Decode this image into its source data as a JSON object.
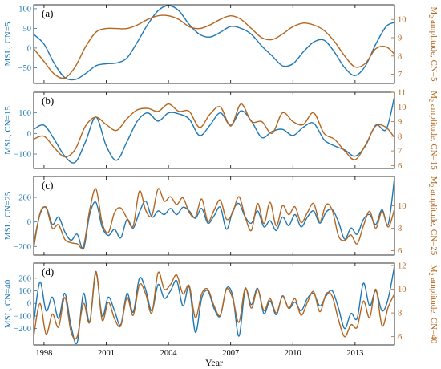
{
  "chart_data": {
    "type": "line",
    "xlabel": "Year",
    "xlim": [
      1997.5,
      2014.9
    ],
    "xticks": [
      1998,
      2001,
      2004,
      2007,
      2010,
      2013
    ],
    "colors": {
      "msl": "#1f77b4",
      "m2": "#b5651d",
      "axis": "#000000"
    },
    "panels": [
      {
        "tag": "(a)",
        "ylabel_left": "MSL, CN=5",
        "ylabel_right": "M2 amplitude, CN=5",
        "ylim_left": [
          -90,
          110
        ],
        "yticks_left": [
          -50,
          0,
          50,
          100
        ],
        "ylim_right": [
          6.5,
          10.8
        ],
        "yticks_right": [
          7,
          8,
          9,
          10
        ],
        "series": [
          {
            "axis": "left",
            "color": "#1f77b4",
            "x": [
              1997.5,
              1998.0,
              1998.5,
              1999.0,
              1999.5,
              2000.0,
              2000.5,
              2001.0,
              2001.5,
              2002.0,
              2002.5,
              2003.0,
              2003.5,
              2004.0,
              2004.5,
              2005.0,
              2005.5,
              2006.0,
              2006.5,
              2007.0,
              2007.5,
              2008.0,
              2008.5,
              2009.0,
              2009.5,
              2010.0,
              2010.5,
              2011.0,
              2011.5,
              2012.0,
              2012.5,
              2013.0,
              2013.5,
              2014.0,
              2014.5,
              2014.9
            ],
            "y": [
              35,
              10,
              -40,
              -75,
              -80,
              -65,
              -45,
              -40,
              -38,
              -25,
              15,
              60,
              95,
              108,
              95,
              60,
              35,
              28,
              40,
              55,
              50,
              35,
              5,
              -20,
              -45,
              -40,
              -10,
              15,
              20,
              -10,
              -50,
              -70,
              -45,
              10,
              55,
              65
            ]
          },
          {
            "axis": "right",
            "color": "#b5651d",
            "x": [
              1997.5,
              1998.0,
              1998.5,
              1999.0,
              1999.5,
              2000.0,
              2000.5,
              2001.0,
              2001.5,
              2002.0,
              2002.5,
              2003.0,
              2003.5,
              2004.0,
              2004.5,
              2005.0,
              2005.5,
              2006.0,
              2006.5,
              2007.0,
              2007.5,
              2008.0,
              2008.5,
              2009.0,
              2009.5,
              2010.0,
              2010.5,
              2011.0,
              2011.5,
              2012.0,
              2012.5,
              2013.0,
              2013.5,
              2014.0,
              2014.5,
              2014.9
            ],
            "y": [
              8.4,
              7.7,
              7.0,
              6.8,
              7.4,
              8.5,
              9.3,
              9.5,
              9.5,
              9.5,
              9.7,
              10.0,
              10.2,
              10.2,
              10.0,
              9.6,
              9.5,
              9.7,
              10.0,
              10.2,
              10.0,
              9.5,
              9.0,
              8.9,
              9.2,
              9.6,
              9.8,
              9.7,
              9.4,
              8.8,
              8.0,
              7.4,
              7.6,
              8.4,
              8.5,
              8.1
            ]
          }
        ]
      },
      {
        "tag": "(b)",
        "ylabel_left": "MSL, CN=15",
        "ylabel_right": "M2 amplitude, CN=15",
        "ylim_left": [
          -170,
          200
        ],
        "yticks_left": [
          -100,
          0,
          100
        ],
        "ylim_right": [
          5.8,
          11
        ],
        "yticks_right": [
          6,
          7,
          8,
          9,
          10,
          11
        ],
        "series": [
          {
            "axis": "left",
            "color": "#1f77b4",
            "x": [
              1997.5,
              1998.0,
              1998.5,
              1999.0,
              1999.5,
              2000.0,
              2000.5,
              2001.0,
              2001.5,
              2002.0,
              2002.5,
              2003.0,
              2003.5,
              2004.0,
              2004.5,
              2005.0,
              2005.5,
              2006.0,
              2006.5,
              2007.0,
              2007.5,
              2008.0,
              2008.5,
              2009.0,
              2009.5,
              2010.0,
              2010.5,
              2011.0,
              2011.5,
              2012.0,
              2012.5,
              2013.0,
              2013.5,
              2014.0,
              2014.5,
              2014.9
            ],
            "y": [
              20,
              40,
              -30,
              -110,
              -140,
              -40,
              80,
              -60,
              -130,
              -40,
              60,
              100,
              60,
              100,
              95,
              70,
              -10,
              40,
              100,
              40,
              110,
              60,
              -20,
              10,
              20,
              -10,
              30,
              50,
              -30,
              -60,
              -80,
              -110,
              -60,
              40,
              20,
              180
            ]
          },
          {
            "axis": "right",
            "color": "#b5651d",
            "x": [
              1997.5,
              1998.0,
              1998.5,
              1999.0,
              1999.5,
              2000.0,
              2000.5,
              2001.0,
              2001.5,
              2002.0,
              2002.5,
              2003.0,
              2003.5,
              2004.0,
              2004.5,
              2005.0,
              2005.5,
              2006.0,
              2006.5,
              2007.0,
              2007.5,
              2008.0,
              2008.5,
              2009.0,
              2009.5,
              2010.0,
              2010.5,
              2011.0,
              2011.5,
              2012.0,
              2012.5,
              2013.0,
              2013.5,
              2014.0,
              2014.5,
              2014.9
            ],
            "y": [
              7.8,
              8.0,
              7.2,
              6.6,
              7.1,
              8.7,
              9.3,
              8.8,
              8.4,
              9.2,
              9.8,
              9.9,
              9.7,
              10.2,
              9.7,
              9.7,
              8.6,
              9.5,
              10.0,
              8.7,
              10.2,
              9.0,
              9.0,
              8.2,
              9.6,
              9.0,
              8.8,
              9.6,
              8.2,
              7.8,
              7.0,
              6.4,
              7.4,
              8.7,
              8.6,
              7.9
            ]
          }
        ]
      },
      {
        "tag": "(c)",
        "ylabel_left": "MSL, CN=25",
        "ylabel_right": "M2 amplitude, CN=25",
        "ylim_left": [
          -270,
          370
        ],
        "yticks_left": [
          -200,
          0,
          200
        ],
        "ylim_right": [
          5.6,
          12.6
        ],
        "yticks_right": [
          6,
          8,
          10
        ],
        "series": [
          {
            "axis": "left",
            "color": "#1f77b4",
            "x": [
              1997.5,
              1997.8,
              1998.1,
              1998.4,
              1998.7,
              1999.0,
              1999.3,
              1999.6,
              1999.9,
              2000.2,
              2000.5,
              2000.8,
              2001.1,
              2001.4,
              2001.7,
              2002.0,
              2002.3,
              2002.6,
              2002.9,
              2003.2,
              2003.5,
              2003.8,
              2004.1,
              2004.4,
              2004.7,
              2005.0,
              2005.3,
              2005.6,
              2005.9,
              2006.2,
              2006.5,
              2006.8,
              2007.1,
              2007.4,
              2007.7,
              2008.0,
              2008.3,
              2008.6,
              2008.9,
              2009.2,
              2009.5,
              2009.8,
              2010.1,
              2010.4,
              2010.7,
              2011.0,
              2011.3,
              2011.6,
              2011.9,
              2012.2,
              2012.5,
              2012.8,
              2013.1,
              2013.4,
              2013.7,
              2014.0,
              2014.3,
              2014.6,
              2014.9
            ],
            "y": [
              -180,
              60,
              120,
              -20,
              40,
              -80,
              -150,
              -100,
              -220,
              60,
              160,
              -40,
              -110,
              -60,
              -130,
              20,
              -50,
              80,
              170,
              40,
              90,
              60,
              110,
              60,
              120,
              90,
              30,
              110,
              -10,
              50,
              120,
              -60,
              90,
              150,
              40,
              -10,
              90,
              -40,
              10,
              -70,
              40,
              -30,
              60,
              -40,
              40,
              90,
              -10,
              80,
              100,
              0,
              -140,
              -50,
              -100,
              20,
              60,
              -20,
              100,
              -20,
              360
            ]
          },
          {
            "axis": "right",
            "color": "#b5651d",
            "x": [
              1997.5,
              1997.8,
              1998.1,
              1998.4,
              1998.7,
              1999.0,
              1999.3,
              1999.6,
              1999.9,
              2000.2,
              2000.5,
              2000.8,
              2001.1,
              2001.4,
              2001.7,
              2002.0,
              2002.3,
              2002.6,
              2002.9,
              2003.2,
              2003.5,
              2003.8,
              2004.1,
              2004.4,
              2004.7,
              2005.0,
              2005.3,
              2005.6,
              2005.9,
              2006.2,
              2006.5,
              2006.8,
              2007.1,
              2007.4,
              2007.7,
              2008.0,
              2008.3,
              2008.6,
              2008.9,
              2009.2,
              2009.5,
              2009.8,
              2010.1,
              2010.4,
              2010.7,
              2011.0,
              2011.3,
              2011.6,
              2011.9,
              2012.2,
              2012.5,
              2012.8,
              2013.1,
              2013.4,
              2013.7,
              2014.0,
              2014.3,
              2014.6,
              2014.9
            ],
            "y": [
              6.2,
              9.3,
              9.8,
              8.0,
              8.3,
              7.0,
              6.7,
              6.6,
              6.4,
              9.6,
              11.5,
              8.5,
              7.6,
              9.4,
              9.8,
              8.9,
              8.2,
              11.3,
              9.6,
              9.1,
              11.5,
              10.4,
              10.8,
              10.1,
              10.7,
              9.4,
              9.0,
              10.6,
              8.6,
              9.6,
              10.5,
              8.8,
              9.4,
              10.8,
              9.0,
              7.8,
              10.2,
              8.4,
              10.3,
              8.2,
              10.0,
              9.2,
              9.9,
              8.5,
              9.4,
              10.2,
              8.6,
              10.1,
              9.6,
              7.3,
              6.9,
              7.4,
              6.6,
              8.2,
              9.5,
              8.0,
              9.5,
              8.1,
              9.7
            ]
          }
        ]
      },
      {
        "tag": "(d)",
        "ylabel_left": "MSL, CN=40",
        "ylabel_right": "M2 amplitude, CN=40",
        "ylim_left": [
          -330,
          320
        ],
        "yticks_left": [
          -200,
          -100,
          0,
          100,
          200
        ],
        "ylim_right": [
          5.3,
          12.2
        ],
        "yticks_right": [
          6,
          8,
          10,
          12
        ],
        "series": [
          {
            "axis": "left",
            "color": "#1f77b4",
            "x": [
              1997.5,
              1997.8,
              1998.1,
              1998.4,
              1998.7,
              1999.0,
              1999.3,
              1999.6,
              1999.9,
              2000.2,
              2000.5,
              2000.8,
              2001.1,
              2001.4,
              2001.7,
              2002.0,
              2002.3,
              2002.6,
              2002.9,
              2003.2,
              2003.5,
              2003.8,
              2004.1,
              2004.4,
              2004.7,
              2005.0,
              2005.3,
              2005.6,
              2005.9,
              2006.2,
              2006.5,
              2006.8,
              2007.1,
              2007.4,
              2007.7,
              2008.0,
              2008.3,
              2008.6,
              2008.9,
              2009.2,
              2009.5,
              2009.8,
              2010.1,
              2010.4,
              2010.7,
              2011.0,
              2011.3,
              2011.6,
              2011.9,
              2012.2,
              2012.5,
              2012.8,
              2013.1,
              2013.4,
              2013.7,
              2014.0,
              2014.3,
              2014.6,
              2014.9
            ],
            "y": [
              -160,
              170,
              -60,
              50,
              -120,
              80,
              -180,
              -310,
              80,
              -150,
              240,
              -100,
              50,
              -60,
              -170,
              80,
              -70,
              200,
              110,
              -60,
              150,
              40,
              100,
              180,
              -20,
              130,
              -230,
              40,
              100,
              -40,
              -100,
              120,
              60,
              -260,
              110,
              -10,
              120,
              -80,
              20,
              -90,
              60,
              -40,
              10,
              -60,
              40,
              80,
              -20,
              60,
              100,
              -40,
              -200,
              -80,
              -120,
              160,
              -20,
              100,
              -60,
              40,
              300
            ]
          },
          {
            "axis": "right",
            "color": "#b5651d",
            "x": [
              1997.5,
              1997.8,
              1998.1,
              1998.4,
              1998.7,
              1999.0,
              1999.3,
              1999.6,
              1999.9,
              2000.2,
              2000.5,
              2000.8,
              2001.1,
              2001.4,
              2001.7,
              2002.0,
              2002.3,
              2002.6,
              2002.9,
              2003.2,
              2003.5,
              2003.8,
              2004.1,
              2004.4,
              2004.7,
              2005.0,
              2005.3,
              2005.6,
              2005.9,
              2006.2,
              2006.5,
              2006.8,
              2007.1,
              2007.4,
              2007.7,
              2008.0,
              2008.3,
              2008.6,
              2008.9,
              2009.2,
              2009.5,
              2009.8,
              2010.1,
              2010.4,
              2010.7,
              2011.0,
              2011.3,
              2011.6,
              2011.9,
              2012.2,
              2012.5,
              2012.8,
              2013.1,
              2013.4,
              2013.7,
              2014.0,
              2014.3,
              2014.6,
              2014.9
            ],
            "y": [
              6.0,
              8.8,
              6.2,
              7.9,
              6.8,
              9.3,
              6.4,
              6.0,
              8.8,
              7.2,
              11.5,
              7.4,
              8.9,
              7.5,
              6.9,
              9.3,
              7.8,
              10.4,
              9.6,
              8.0,
              11.4,
              10.0,
              10.4,
              11.2,
              9.6,
              10.3,
              7.6,
              9.6,
              10.0,
              8.6,
              7.8,
              10.0,
              9.2,
              7.2,
              10.1,
              8.4,
              10.0,
              8.2,
              9.2,
              8.0,
              9.4,
              8.4,
              9.2,
              7.8,
              8.9,
              9.8,
              8.1,
              9.6,
              9.4,
              7.4,
              6.0,
              7.0,
              6.8,
              9.0,
              7.6,
              10.0,
              6.9,
              8.5,
              9.6
            ]
          }
        ]
      }
    ]
  }
}
